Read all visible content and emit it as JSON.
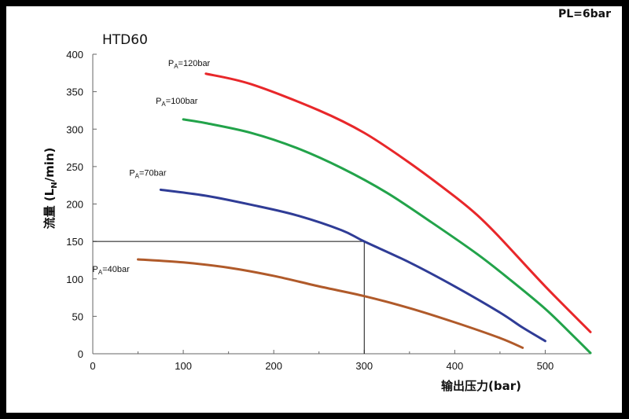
{
  "header": {
    "pl_note": "PL=6bar",
    "title": "HTD60"
  },
  "chart_data": {
    "type": "line",
    "title": "HTD60",
    "xlabel": "输出压力(bar)",
    "ylabel": "流量 (LN/min)",
    "xlim": [
      0,
      550
    ],
    "ylim": [
      0,
      400
    ],
    "x_ticks": [
      0,
      100,
      200,
      300,
      400,
      500
    ],
    "y_ticks": [
      0,
      50,
      100,
      150,
      200,
      250,
      300,
      350,
      400
    ],
    "grid": false,
    "series": [
      {
        "label_main": "P",
        "label_sub": "A",
        "label_rest": "=120bar",
        "color": "#e8272a",
        "points": [
          [
            125,
            374
          ],
          [
            175,
            360
          ],
          [
            250,
            325
          ],
          [
            300,
            295
          ],
          [
            350,
            255
          ],
          [
            400,
            210
          ],
          [
            425,
            185
          ],
          [
            450,
            155
          ],
          [
            500,
            90
          ],
          [
            550,
            29
          ]
        ]
      },
      {
        "label_main": "P",
        "label_sub": "A",
        "label_rest": "=100bar",
        "color": "#22a34a",
        "points": [
          [
            100,
            313
          ],
          [
            125,
            308
          ],
          [
            175,
            295
          ],
          [
            225,
            275
          ],
          [
            275,
            248
          ],
          [
            325,
            215
          ],
          [
            375,
            175
          ],
          [
            425,
            133
          ],
          [
            460,
            100
          ],
          [
            500,
            60
          ],
          [
            530,
            25
          ],
          [
            550,
            1
          ]
        ]
      },
      {
        "label_main": "P",
        "label_sub": "A",
        "label_rest": "=70bar",
        "color": "#2f3c96",
        "points": [
          [
            75,
            219
          ],
          [
            125,
            211
          ],
          [
            175,
            199
          ],
          [
            225,
            185
          ],
          [
            275,
            165
          ],
          [
            300,
            150
          ],
          [
            350,
            122
          ],
          [
            400,
            90
          ],
          [
            450,
            55
          ],
          [
            475,
            35
          ],
          [
            500,
            17
          ]
        ]
      },
      {
        "label_main": "P",
        "label_sub": "A",
        "label_rest": "=40bar",
        "color": "#b05a2a",
        "points": [
          [
            50,
            126
          ],
          [
            100,
            122
          ],
          [
            150,
            115
          ],
          [
            200,
            104
          ],
          [
            250,
            90
          ],
          [
            300,
            77
          ],
          [
            350,
            61
          ],
          [
            400,
            42
          ],
          [
            450,
            21
          ],
          [
            475,
            8
          ]
        ]
      }
    ],
    "reference": {
      "x": 300,
      "y": 150
    }
  }
}
